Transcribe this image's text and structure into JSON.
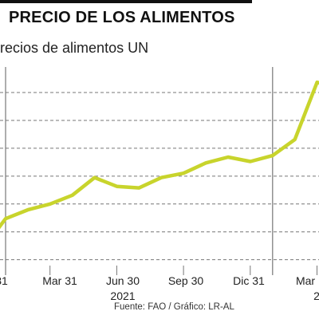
{
  "header": {
    "title": "PRECIO DE LOS ALIMENTOS",
    "subtitle": "recios de alimentos UN"
  },
  "source": "Fuente: FAO / Gráfico: LR-AL",
  "colors": {
    "line": "#c8d42c",
    "grid": "#777777",
    "accent": "#111111"
  },
  "chart_data": {
    "type": "line",
    "title": "PRECIO DE LOS ALIMENTOS",
    "subtitle": "recios de alimentos UN",
    "x_labels": [
      "31",
      "Mar 31",
      "Jun 30",
      "Sep 30",
      "Dic 31",
      "Mar"
    ],
    "year_labels": [
      {
        "label": "2021",
        "under": "Jun 30"
      },
      {
        "label": "2",
        "under": "Mar"
      }
    ],
    "x_unit": "months since 2020-12-31",
    "x": [
      -0.5,
      0,
      1,
      2,
      3,
      4,
      5,
      6,
      7,
      8,
      9,
      10,
      11,
      12,
      13,
      14,
      14.5
    ],
    "series": [
      {
        "values": [
          108,
          113,
          116,
          118,
          121,
          127,
          124,
          123.5,
          127,
          128.5,
          132,
          134,
          132.5,
          134.5,
          140,
          159.5,
          158.5
        ]
      }
    ],
    "ylim": [
      97,
      162
    ],
    "gridlines": [
      99,
      108.5,
      118,
      127.5,
      137,
      146.5,
      156
    ],
    "grid": true,
    "legend": "none"
  }
}
